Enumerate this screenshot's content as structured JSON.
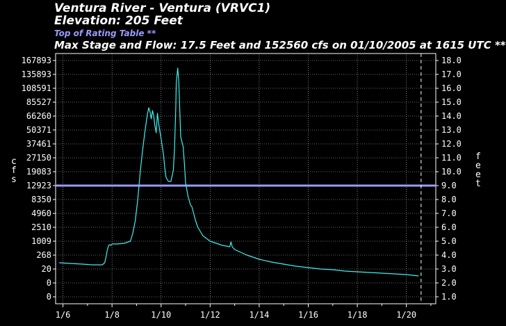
{
  "header": {
    "title": "Ventura River - Ventura (VRVC1)",
    "elevation": "Elevation: 205 Feet",
    "rating_label": "Top of Rating Table **",
    "max_line": "Max Stage and Flow: 17.5 Feet and 152560 cfs on 01/10/2005 at 1615 UTC **"
  },
  "colors": {
    "background": "#000000",
    "axes": "#ffffff",
    "series": "#40f0f0",
    "rating_line": "#9a9aff"
  },
  "chart_data": {
    "type": "line",
    "title": "Ventura River - Ventura (VRVC1)",
    "grid": true,
    "legend": "none",
    "xlabel": "",
    "ylabel_left": "cfs",
    "ylabel_right": "feet",
    "x_ticks": [
      "1/6",
      "1/8",
      "1/10",
      "1/12",
      "1/14",
      "1/16",
      "1/18",
      "1/20"
    ],
    "x_tick_days": [
      6,
      8,
      10,
      12,
      14,
      16,
      18,
      20
    ],
    "xlim": [
      5.7,
      21.2
    ],
    "now_marker_day": 20.6,
    "left_ticks": [
      "0",
      "0",
      "20",
      "268",
      "1009",
      "2510",
      "4960",
      "8350",
      "12923",
      "19083",
      "27150",
      "37461",
      "50371",
      "66260",
      "85527",
      "108591",
      "135893",
      "167893"
    ],
    "right_ticks": [
      "1.0",
      "2.0",
      "3.0",
      "4.0",
      "5.0",
      "6.0",
      "7.0",
      "8.0",
      "9.0",
      "10.0",
      "11.0",
      "12.0",
      "13.0",
      "14.0",
      "15.0",
      "16.0",
      "17.0",
      "18.0"
    ],
    "ylim_stage_ft": [
      0.5,
      18.5
    ],
    "rating_table_top_ft": 9.0,
    "series": [
      {
        "unit": "stage_ft",
        "x": [
          5.85,
          6.3,
          6.8,
          7.2,
          7.6,
          7.7,
          7.75,
          7.8,
          7.85,
          7.9,
          7.95,
          8.0,
          8.2,
          8.5,
          8.75,
          8.85,
          8.95,
          9.05,
          9.15,
          9.25,
          9.35,
          9.45,
          9.5,
          9.55,
          9.6,
          9.65,
          9.7,
          9.75,
          9.8,
          9.85,
          9.9,
          9.95,
          10.0,
          10.05,
          10.1,
          10.15,
          10.2,
          10.3,
          10.4,
          10.5,
          10.55,
          10.6,
          10.62,
          10.68,
          10.72,
          10.8,
          10.9,
          10.95,
          11.0,
          11.1,
          11.2,
          11.25,
          11.3,
          11.4,
          11.5,
          11.7,
          12.0,
          12.5,
          12.8,
          12.85,
          12.9,
          13.0,
          13.5,
          14.0,
          14.5,
          15.0,
          15.5,
          16.0,
          16.5,
          17.0,
          17.5,
          18.0,
          18.5,
          19.0,
          19.5,
          20.0,
          20.5
        ],
        "y": [
          3.45,
          3.4,
          3.35,
          3.3,
          3.3,
          3.45,
          3.8,
          4.3,
          4.65,
          4.75,
          4.7,
          4.8,
          4.8,
          4.85,
          5.0,
          5.6,
          6.5,
          8.0,
          10.0,
          11.6,
          13.0,
          14.2,
          14.6,
          14.3,
          13.8,
          14.4,
          14.0,
          13.3,
          12.8,
          14.2,
          13.5,
          12.9,
          12.4,
          11.8,
          11.2,
          10.3,
          9.6,
          9.3,
          9.3,
          10.1,
          11.8,
          14.6,
          16.4,
          17.45,
          16.5,
          12.5,
          11.8,
          10.6,
          9.2,
          8.2,
          7.6,
          7.5,
          7.2,
          6.5,
          6.0,
          5.4,
          5.0,
          4.7,
          4.6,
          4.95,
          4.6,
          4.4,
          4.0,
          3.7,
          3.5,
          3.35,
          3.2,
          3.1,
          3.0,
          2.95,
          2.85,
          2.8,
          2.75,
          2.7,
          2.65,
          2.6,
          2.5
        ]
      }
    ]
  }
}
